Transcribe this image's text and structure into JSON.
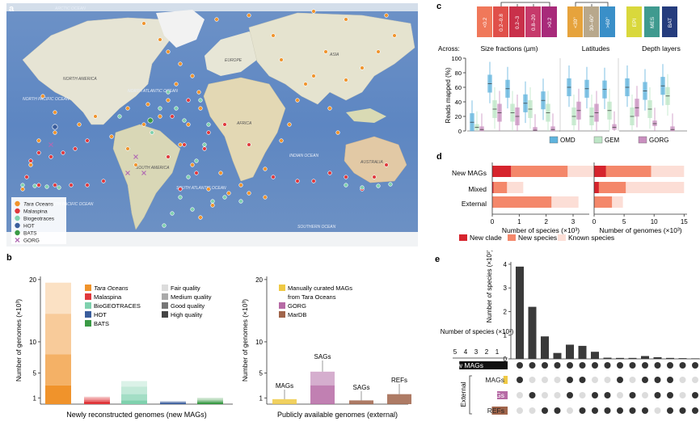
{
  "panel_a": {
    "label": "a",
    "regions": [
      "ARCTIC OCEAN",
      "NORTH AMERICA",
      "SOUTH AMERICA",
      "EUROPE",
      "AFRICA",
      "ASIA",
      "AUSTRALIA",
      "NORTH PACIFIC OCEAN",
      "SOUTH PACIFIC OCEAN",
      "NORTH ATLANTIC OCEAN",
      "SOUTH ATLANTIC OCEAN",
      "INDIAN OCEAN",
      "SOUTHERN OCEAN"
    ],
    "legend": [
      {
        "label": "Tara Oceans",
        "color": "#f0932b",
        "shape": "dot"
      },
      {
        "label": "Malaspina",
        "color": "#e0383c",
        "shape": "dot"
      },
      {
        "label": "Biogeotraces",
        "color": "#7fd1ae",
        "shape": "dot"
      },
      {
        "label": "HOT",
        "color": "#3a5d9c",
        "shape": "pie"
      },
      {
        "label": "BATS",
        "color": "#3a9a45",
        "shape": "pie"
      },
      {
        "label": "GORG",
        "color": "#b06ab3",
        "shape": "cross"
      }
    ]
  },
  "panel_b": {
    "label": "b",
    "chart_data": [
      {
        "type": "bar",
        "title": "Newly reconstructed genomes (new MAGs)",
        "ylabel": "Number of genomes (×10³)",
        "yticks": [
          "1",
          "5",
          "10",
          "20"
        ],
        "categories": [
          "Tara Oceans",
          "Malaspina",
          "BioGEOTRACES",
          "HOT",
          "BATS"
        ],
        "series": [
          {
            "name": "High quality",
            "values": [
              3.0,
              0.4,
              0.6,
              0.2,
              0.3
            ]
          },
          {
            "name": "Good quality",
            "values": [
              5.0,
              0.3,
              1.0,
              0.1,
              0.2
            ]
          },
          {
            "name": "Medium quality",
            "values": [
              6.5,
              0.3,
              1.2,
              0.1,
              0.2
            ]
          },
          {
            "name": "Fair quality",
            "values": [
              5.0,
              0.2,
              0.9,
              0.1,
              0.3
            ]
          }
        ],
        "legend_sources": [
          {
            "label": "Tara Oceans",
            "color": "#f0932b"
          },
          {
            "label": "Malaspina",
            "color": "#e0383c"
          },
          {
            "label": "BioGEOTRACES",
            "color": "#7fd1ae"
          },
          {
            "label": "HOT",
            "color": "#3a5d9c"
          },
          {
            "label": "BATS",
            "color": "#3a9a45"
          }
        ],
        "legend_quality": [
          {
            "label": "Fair quality",
            "color": "#dcdcdc"
          },
          {
            "label": "Medium quality",
            "color": "#aaaaaa"
          },
          {
            "label": "Good quality",
            "color": "#777777"
          },
          {
            "label": "High quality",
            "color": "#444444"
          }
        ]
      },
      {
        "type": "bar",
        "title": "Publicly available genomes (external)",
        "ylabel": "Number of genomes (×10³)",
        "yticks": [
          "1",
          "5",
          "10",
          "20"
        ],
        "categories": [
          "MAGs",
          "SAGs",
          "SAGs",
          "REFs"
        ],
        "colors": [
          "#efc944",
          "#b66aa5",
          "#a0644a",
          "#a0644a"
        ],
        "values": [
          0.8,
          5.2,
          0.6,
          1.6
        ],
        "legend": [
          {
            "label": "Manually curated MAGs",
            "color": "#efc944"
          },
          {
            "label": "from Tara Oceans",
            "color": ""
          },
          {
            "label": "GORG",
            "color": "#b66aa5"
          },
          {
            "label": "MarDB",
            "color": "#a0644a"
          }
        ]
      }
    ]
  },
  "panel_c": {
    "label": "c",
    "header_boxes": [
      {
        "label": "<0.2",
        "color": "#f0785a"
      },
      {
        "label": "0.2–0.8",
        "color": "#e0504a"
      },
      {
        "label": "0.2–3",
        "color": "#c9304a"
      },
      {
        "label": "0.8–20",
        "color": "#c63a6b"
      },
      {
        "label": ">0.2",
        "color": "#a82a7a"
      },
      {
        "label": "<30°",
        "color": "#e6a33c"
      },
      {
        "label": "30–60°",
        "color": "#b8a88c"
      },
      {
        "label": ">60°",
        "color": "#3a8fc8"
      },
      {
        "label": "EPI",
        "color": "#d9d83c"
      },
      {
        "label": "MES",
        "color": "#3f9a8f"
      },
      {
        "label": "BAT",
        "color": "#253c7d"
      }
    ],
    "across_label": "Across:",
    "group_titles": [
      "Size fractions (µm)",
      "Latitudes",
      "Depth layers"
    ],
    "chart_data": {
      "type": "box",
      "ylabel": "Reads mapped (%)",
      "ylim": [
        0,
        100
      ],
      "yticks": [
        "0",
        "20",
        "40",
        "60",
        "80",
        "100"
      ],
      "series": [
        {
          "name": "OMD",
          "color": "#5fb3dd"
        },
        {
          "name": "GEM",
          "color": "#bde6c6"
        },
        {
          "name": "GORG",
          "color": "#c98fbf"
        }
      ],
      "groups": [
        {
          "name": "<0.2",
          "medians": [
            12,
            5,
            2
          ]
        },
        {
          "name": "0.2–0.8",
          "medians": [
            65,
            30,
            25
          ]
        },
        {
          "name": "0.2–3",
          "medians": [
            58,
            25,
            20
          ]
        },
        {
          "name": "0.8–20",
          "medians": [
            38,
            30,
            1
          ]
        },
        {
          "name": ">0.2",
          "medians": [
            42,
            25,
            2
          ]
        },
        {
          "name": "<30°",
          "medians": [
            60,
            20,
            28
          ]
        },
        {
          "name": "30–60°",
          "medians": [
            58,
            20,
            25
          ]
        },
        {
          "name": ">60°",
          "medians": [
            57,
            28,
            5
          ]
        },
        {
          "name": "EPI",
          "medians": [
            60,
            20,
            32
          ]
        },
        {
          "name": "MES",
          "medians": [
            55,
            30,
            10
          ]
        },
        {
          "name": "BAT",
          "medians": [
            62,
            48,
            2
          ]
        }
      ]
    }
  },
  "panel_d": {
    "label": "d",
    "chart_data": {
      "type": "stacked-bar-horizontal",
      "categories": [
        "New MAGs",
        "Mixed",
        "External"
      ],
      "series_names": [
        "New clade",
        "New species",
        "Known species"
      ],
      "colors": [
        "#d6242d",
        "#f4876a",
        "#fcded6"
      ],
      "species": {
        "xlabel": "Number of species (×10³)",
        "xticks": [
          "0",
          "1",
          "2",
          "3"
        ],
        "values": [
          [
            0.7,
            2.1,
            1.1
          ],
          [
            0.05,
            0.5,
            0.6
          ],
          [
            0.0,
            2.2,
            1.0
          ]
        ]
      },
      "genomes": {
        "xlabel": "Number of genomes (×10³)",
        "xticks": [
          "0",
          "5",
          "10",
          "15"
        ],
        "values": [
          [
            2.0,
            7.5,
            5.5
          ],
          [
            0.8,
            4.5,
            9.7
          ],
          [
            0.0,
            3.0,
            1.8
          ]
        ]
      }
    }
  },
  "panel_e": {
    "label": "e",
    "chart_data": {
      "type": "upset",
      "ylabel": "Number of species (×10³)",
      "yticks": [
        "0",
        "1",
        "2",
        "3",
        "4"
      ],
      "intersection_sizes": [
        3.9,
        2.2,
        0.95,
        0.25,
        0.6,
        0.55,
        0.3,
        0.05,
        0.04,
        0.04,
        0.12,
        0.07,
        0.04,
        0.03,
        0.02
      ],
      "set_size_label": "Number of species (×10³)",
      "set_size_ticks": [
        "5",
        "4",
        "3",
        "2",
        "1"
      ],
      "sets": [
        {
          "name": "New MAGs",
          "color": "#111111",
          "size": 4.6
        },
        {
          "name": "MAGs",
          "color": "#efc944",
          "size": 0.4
        },
        {
          "name": "SAGs",
          "color": "#b66aa5",
          "size": 1.0
        },
        {
          "name": "REFs",
          "color": "#a0644a",
          "size": 1.5
        }
      ],
      "external_label": "External"
    }
  }
}
